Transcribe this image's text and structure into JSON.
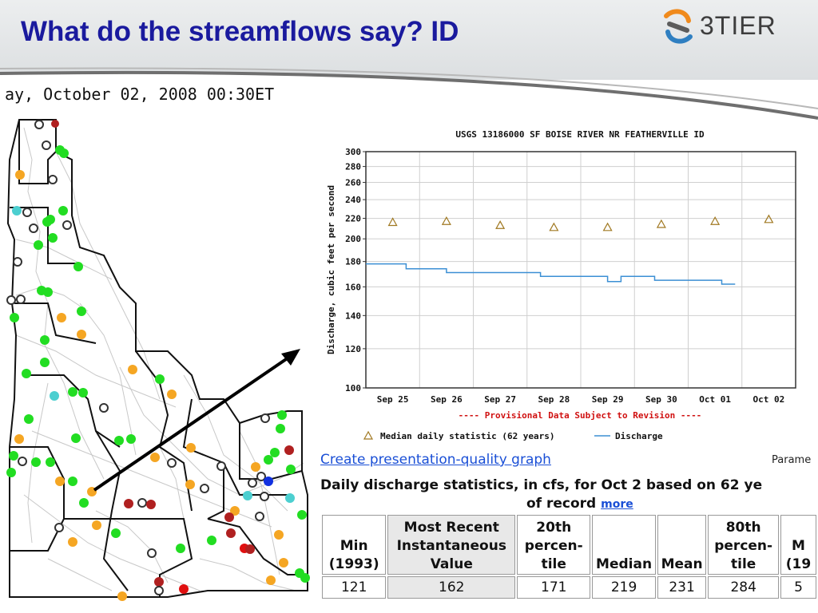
{
  "slide": {
    "title": "What do the streamflows say?  ID",
    "logo_text": "3TIER"
  },
  "map": {
    "date_text": "ay, October 02, 2008 00:30ET",
    "colors": {
      "green": "#22dd22",
      "orange": "#f5a623",
      "darkred": "#b02020",
      "red": "#e01010",
      "cyan": "#4ccfd0",
      "blue": "#1030e0",
      "open": "#333333"
    },
    "icons": {
      "open": "open-circle-icon",
      "dot": "site-dot-icon"
    }
  },
  "chart_data": {
    "type": "line",
    "title": "USGS 13186000 SF BOISE RIVER NR FEATHERVILLE ID",
    "xlabel": "",
    "ylabel": "Discharge, cubic feet per second",
    "y_scale": "log",
    "ylim": [
      100,
      300
    ],
    "y_ticks": [
      100,
      120,
      140,
      160,
      180,
      200,
      220,
      240,
      260,
      280,
      300
    ],
    "x_ticks": [
      "Sep 25",
      "Sep 26",
      "Sep 27",
      "Sep 28",
      "Sep 29",
      "Sep 30",
      "Oct 01",
      "Oct 02"
    ],
    "provisional_note": "---- Provisional Data Subject to Revision ----",
    "series": [
      {
        "name": "Discharge",
        "type": "line",
        "color": "#3b8fd4",
        "points": [
          [
            "Sep 25 00:00",
            178
          ],
          [
            "Sep 25 18:00",
            178
          ],
          [
            "Sep 25 18:00",
            174
          ],
          [
            "Sep 26 12:00",
            174
          ],
          [
            "Sep 26 12:00",
            171
          ],
          [
            "Sep 28 06:00",
            171
          ],
          [
            "Sep 28 06:00",
            168
          ],
          [
            "Sep 29 12:00",
            168
          ],
          [
            "Sep 29 12:00",
            164
          ],
          [
            "Sep 29 18:00",
            164
          ],
          [
            "Sep 29 18:00",
            168
          ],
          [
            "Sep 30 09:00",
            168
          ],
          [
            "Sep 30 09:00",
            165
          ],
          [
            "Oct 01 15:00",
            165
          ],
          [
            "Oct 01 15:00",
            162
          ],
          [
            "Oct 01 21:00",
            162
          ]
        ]
      },
      {
        "name": "Median daily statistic (62 years)",
        "type": "scatter",
        "marker": "triangle",
        "color": "#a07820",
        "points": [
          [
            "Sep 25",
            216
          ],
          [
            "Sep 26",
            217
          ],
          [
            "Sep 27",
            213
          ],
          [
            "Sep 28",
            211
          ],
          [
            "Sep 29",
            211
          ],
          [
            "Sep 30",
            214
          ],
          [
            "Oct 01",
            217
          ],
          [
            "Oct 02",
            219
          ]
        ]
      }
    ],
    "legend": {
      "placement": "bottom",
      "median_label": "Median daily statistic (62 years)",
      "discharge_label": "Discharge"
    }
  },
  "links": {
    "presentation": "Create presentation-quality graph",
    "param": "Parame"
  },
  "stats": {
    "title_line1": "Daily discharge statistics, in cfs, for Oct 2 based on 62 ye",
    "title_line2": "of record",
    "more": "more",
    "headers": [
      [
        "Min",
        "(1993)"
      ],
      [
        "Most Recent",
        "Instantaneous",
        "Value"
      ],
      [
        "20th",
        "percen-",
        "tile"
      ],
      [
        "Median"
      ],
      [
        "Mean"
      ],
      [
        "80th",
        "percen-",
        "tile"
      ],
      [
        "M",
        "(19"
      ]
    ],
    "values": [
      "121",
      "162",
      "171",
      "219",
      "231",
      "284",
      "5"
    ]
  }
}
